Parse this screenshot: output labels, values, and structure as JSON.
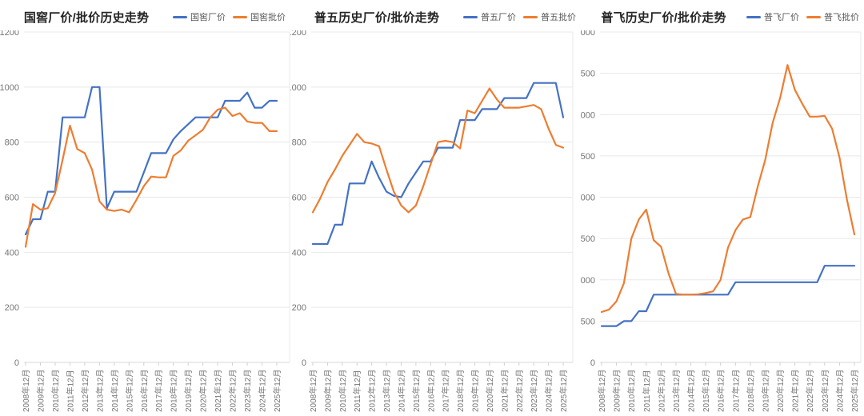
{
  "page": {
    "background": "#ffffff",
    "grid_color": "#e8e8e8",
    "axis_color": "#d9d9d9",
    "tick_color": "#cfcfcf",
    "label_color": "#757575"
  },
  "chart_data": [
    {
      "type": "line",
      "title": "国窖厂价/批价历史走势",
      "x_frequency": "semiannual points (Jun & Dec), Dec 2008 - Dec 2025",
      "x_tick_labels": [
        "2008年12月",
        "2009年12月",
        "2010年12月",
        "2011年12月",
        "2012年12月",
        "2013年12月",
        "2014年12月",
        "2015年12月",
        "2016年12月",
        "2017年12月",
        "2018年12月",
        "2019年12月",
        "2020年12月",
        "2021年12月",
        "2022年12月",
        "2023年12月",
        "2024年12月",
        "2025年12月"
      ],
      "ylim": [
        0,
        1200
      ],
      "ystep": 200,
      "grid": true,
      "legend_position": "top-right",
      "series": [
        {
          "name": "国窖厂价",
          "color": "#4472C4",
          "values": [
            465,
            520,
            520,
            620,
            620,
            890,
            890,
            890,
            890,
            1000,
            1000,
            560,
            620,
            620,
            620,
            620,
            690,
            760,
            760,
            760,
            810,
            840,
            865,
            890,
            890,
            890,
            890,
            950,
            950,
            950,
            980,
            925,
            925,
            950,
            950
          ]
        },
        {
          "name": "国窖批价",
          "color": "#ED7D31",
          "values": [
            420,
            575,
            555,
            560,
            615,
            735,
            860,
            775,
            760,
            700,
            585,
            555,
            550,
            555,
            545,
            590,
            640,
            675,
            672,
            672,
            750,
            770,
            805,
            825,
            845,
            890,
            918,
            925,
            895,
            905,
            875,
            870,
            870,
            840,
            840
          ]
        }
      ]
    },
    {
      "type": "line",
      "title": "普五历史厂价/批价走势",
      "x_frequency": "semiannual points (Jun & Dec), Dec 2008 - Dec 2025",
      "x_tick_labels": [
        "2008年12月",
        "2009年12月",
        "2010年12月",
        "2011年12月",
        "2012年12月",
        "2013年12月",
        "2014年12月",
        "2015年12月",
        "2016年12月",
        "2017年12月",
        "2018年12月",
        "2019年12月",
        "2020年12月",
        "2021年12月",
        "2022年12月",
        "2023年12月",
        "2024年12月",
        "2025年12月"
      ],
      "ylim": [
        0,
        1200
      ],
      "ystep": 200,
      "grid": true,
      "legend_position": "top-right",
      "series": [
        {
          "name": "普五厂价",
          "color": "#4472C4",
          "values": [
            430,
            430,
            430,
            500,
            500,
            650,
            650,
            650,
            730,
            670,
            620,
            605,
            600,
            650,
            690,
            730,
            730,
            780,
            780,
            780,
            880,
            880,
            880,
            920,
            920,
            920,
            960,
            960,
            960,
            960,
            1015,
            1015,
            1015,
            1015,
            890
          ]
        },
        {
          "name": "普五批价",
          "color": "#ED7D31",
          "values": [
            545,
            595,
            655,
            700,
            750,
            790,
            830,
            800,
            795,
            785,
            700,
            620,
            570,
            545,
            570,
            640,
            720,
            800,
            805,
            800,
            777,
            915,
            905,
            950,
            995,
            955,
            925,
            925,
            925,
            930,
            935,
            920,
            850,
            790,
            780
          ]
        }
      ]
    },
    {
      "type": "line",
      "title": "普飞历史厂价/批价走势",
      "x_frequency": "semiannual points (Jun & Dec), Dec 2008 - Dec 2025",
      "x_tick_labels": [
        "2008年12月",
        "2009年12月",
        "2010年12月",
        "2011年12月",
        "2012年12月",
        "2013年12月",
        "2014年12月",
        "2015年12月",
        "2016年12月",
        "2017年12月",
        "2018年12月",
        "2019年12月",
        "2020年12月",
        "2021年12月",
        "2022年12月",
        "2023年12月",
        "2024年12月",
        "2025年12月"
      ],
      "ylim": [
        0,
        4000
      ],
      "ystep": 500,
      "grid": true,
      "legend_position": "top-right",
      "series": [
        {
          "name": "普飞厂价",
          "color": "#4472C4",
          "values": [
            440,
            440,
            440,
            500,
            500,
            620,
            620,
            820,
            820,
            820,
            820,
            820,
            820,
            820,
            820,
            820,
            820,
            820,
            970,
            970,
            970,
            970,
            970,
            970,
            970,
            970,
            970,
            970,
            970,
            970,
            1170,
            1170,
            1170,
            1170,
            1170
          ]
        },
        {
          "name": "普飞批价",
          "color": "#ED7D31",
          "values": [
            610,
            640,
            740,
            960,
            1500,
            1730,
            1850,
            1480,
            1400,
            1080,
            830,
            820,
            820,
            825,
            840,
            860,
            1000,
            1390,
            1600,
            1730,
            1760,
            2130,
            2450,
            2900,
            3200,
            3600,
            3300,
            3130,
            2975,
            2975,
            2985,
            2830,
            2480,
            1970,
            1550
          ]
        }
      ]
    }
  ]
}
